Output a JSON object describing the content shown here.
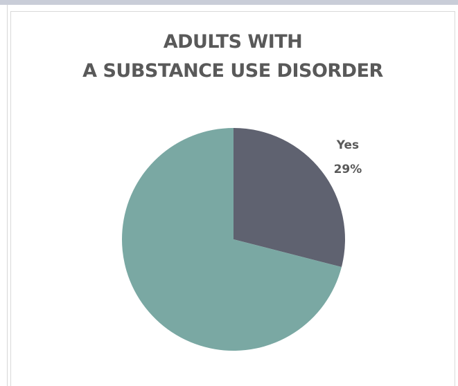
{
  "chart_data": {
    "type": "pie",
    "title_lines": [
      "ADULTS WITH",
      "A SUBSTANCE USE DISORDER"
    ],
    "slices": [
      {
        "label": "Yes",
        "value": 29,
        "value_label": "29%",
        "color": "#5f6270"
      },
      {
        "label": "",
        "value": 71,
        "value_label": "",
        "color": "#7aa8a3"
      }
    ],
    "start_angle_deg": 0,
    "direction": "clockwise",
    "legend": "none"
  }
}
